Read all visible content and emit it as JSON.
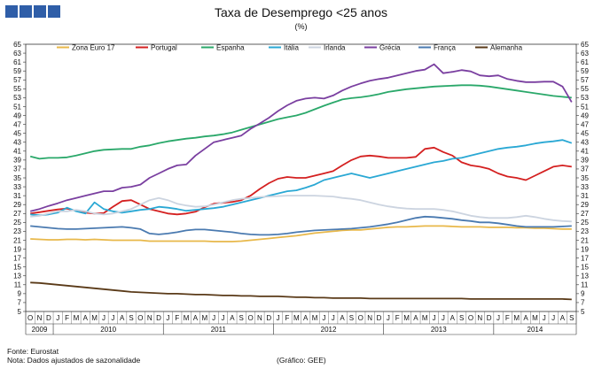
{
  "header": {
    "title": "Taxa de Desemprego <25 anos",
    "subtitle": "(%)"
  },
  "footer": {
    "source": "Fonte: Eurostat",
    "note": "Nota: Dados ajustados de sazonalidade",
    "credit": "(Gráfico: GEE)"
  },
  "chart_data": {
    "type": "line",
    "title": "Taxa de Desemprego <25 anos",
    "unit": "(%)",
    "ylim": [
      5,
      65
    ],
    "ytick_step": 2,
    "grid": false,
    "legend_position": "top",
    "start_month": "2009-10",
    "month_letters": [
      "O",
      "N",
      "D",
      "J",
      "F",
      "M",
      "A",
      "M",
      "J",
      "J",
      "A",
      "S",
      "O",
      "N",
      "D",
      "J",
      "F",
      "M",
      "A",
      "M",
      "J",
      "J",
      "A",
      "S",
      "O",
      "N",
      "D",
      "J",
      "F",
      "M",
      "A",
      "M",
      "J",
      "J",
      "A",
      "S",
      "O",
      "N",
      "D",
      "J",
      "F",
      "M",
      "A",
      "M",
      "J",
      "J",
      "A",
      "S",
      "O",
      "N",
      "D",
      "J",
      "F",
      "M",
      "A",
      "M",
      "J",
      "J",
      "A",
      "S"
    ],
    "years": [
      {
        "label": "2009",
        "start": 0,
        "count": 3
      },
      {
        "label": "2010",
        "start": 3,
        "count": 12
      },
      {
        "label": "2011",
        "start": 15,
        "count": 12
      },
      {
        "label": "2012",
        "start": 27,
        "count": 12
      },
      {
        "label": "2013",
        "start": 39,
        "count": 12
      },
      {
        "label": "2014",
        "start": 51,
        "count": 9
      }
    ],
    "series": [
      {
        "name": "Zona Euro 17",
        "color": "#e8b84a",
        "values": [
          21.3,
          21.2,
          21.1,
          21.1,
          21.2,
          21.2,
          21.1,
          21.2,
          21.1,
          21.0,
          21.0,
          21.0,
          21.0,
          20.8,
          20.8,
          20.8,
          20.8,
          20.8,
          20.8,
          20.8,
          20.7,
          20.7,
          20.7,
          20.8,
          21.0,
          21.2,
          21.4,
          21.6,
          21.8,
          22.0,
          22.3,
          22.6,
          22.8,
          23.0,
          23.2,
          23.3,
          23.3,
          23.5,
          23.7,
          23.9,
          24.0,
          24.0,
          24.1,
          24.2,
          24.2,
          24.2,
          24.1,
          24.0,
          24.0,
          24.0,
          23.9,
          23.9,
          23.9,
          23.8,
          23.8,
          23.7,
          23.7,
          23.6,
          23.5,
          23.5
        ]
      },
      {
        "name": "Portugal",
        "color": "#d42020",
        "values": [
          27.0,
          27.3,
          27.6,
          27.9,
          28.1,
          27.6,
          27.2,
          27.0,
          27.1,
          28.5,
          29.8,
          30.0,
          29.0,
          28.0,
          27.5,
          27.0,
          26.8,
          27.0,
          27.4,
          28.4,
          29.2,
          29.4,
          29.6,
          30.0,
          31.0,
          32.5,
          33.8,
          34.8,
          35.2,
          35.0,
          35.0,
          35.5,
          36.0,
          36.5,
          37.8,
          39.0,
          39.8,
          40.0,
          39.8,
          39.5,
          39.5,
          39.5,
          39.7,
          41.5,
          41.8,
          40.8,
          40.0,
          38.5,
          37.8,
          37.5,
          37.0,
          36.0,
          35.3,
          35.0,
          34.5,
          35.5,
          36.5,
          37.5,
          37.8,
          37.5
        ]
      },
      {
        "name": "Espanha",
        "color": "#2aa86a",
        "values": [
          39.8,
          39.3,
          39.5,
          39.5,
          39.6,
          40.0,
          40.5,
          41.0,
          41.3,
          41.4,
          41.5,
          41.5,
          42.0,
          42.3,
          42.8,
          43.2,
          43.5,
          43.8,
          44.0,
          44.3,
          44.5,
          44.8,
          45.2,
          45.8,
          46.4,
          47.0,
          47.6,
          48.2,
          48.6,
          49.0,
          49.6,
          50.4,
          51.2,
          51.9,
          52.6,
          52.9,
          53.1,
          53.4,
          53.8,
          54.3,
          54.6,
          54.9,
          55.1,
          55.3,
          55.5,
          55.6,
          55.7,
          55.8,
          55.8,
          55.7,
          55.5,
          55.2,
          54.9,
          54.6,
          54.3,
          54.0,
          53.7,
          53.4,
          53.2,
          53.0
        ]
      },
      {
        "name": "Itália",
        "color": "#2aa8d4",
        "values": [
          26.8,
          26.6,
          26.8,
          27.2,
          28.3,
          27.5,
          27.0,
          29.5,
          28.0,
          27.5,
          27.2,
          27.5,
          27.8,
          28.0,
          28.5,
          28.3,
          28.0,
          27.6,
          27.8,
          28.0,
          28.2,
          28.5,
          29.0,
          29.5,
          30.0,
          30.5,
          31.0,
          31.5,
          32.0,
          32.2,
          32.8,
          33.5,
          34.5,
          35.0,
          35.5,
          36.0,
          35.5,
          35.0,
          35.5,
          36.0,
          36.5,
          37.0,
          37.5,
          38.0,
          38.5,
          38.8,
          39.3,
          39.5,
          40.0,
          40.5,
          41.0,
          41.5,
          41.8,
          42.0,
          42.3,
          42.7,
          43.0,
          43.2,
          43.5,
          42.8
        ]
      },
      {
        "name": "Irlanda",
        "color": "#ccd4e0",
        "values": [
          26.3,
          26.5,
          27.0,
          27.5,
          27.5,
          27.8,
          27.5,
          27.0,
          26.8,
          27.0,
          27.5,
          28.0,
          29.0,
          30.0,
          30.5,
          30.0,
          29.2,
          28.8,
          28.5,
          28.6,
          29.0,
          29.5,
          30.0,
          30.3,
          30.5,
          30.7,
          30.8,
          30.9,
          31.0,
          31.0,
          31.0,
          31.0,
          30.9,
          30.8,
          30.5,
          30.3,
          30.0,
          29.5,
          29.0,
          28.6,
          28.3,
          28.1,
          28.0,
          28.0,
          28.0,
          27.8,
          27.5,
          27.0,
          26.5,
          26.2,
          26.0,
          26.0,
          26.0,
          26.2,
          26.5,
          26.2,
          25.8,
          25.5,
          25.3,
          25.2
        ]
      },
      {
        "name": "Grécia",
        "color": "#7a3fa0",
        "values": [
          27.5,
          28.0,
          28.7,
          29.3,
          30.0,
          30.5,
          31.0,
          31.5,
          32.0,
          32.0,
          32.8,
          33.0,
          33.5,
          35.0,
          36.0,
          37.0,
          37.8,
          38.0,
          40.0,
          41.5,
          43.0,
          43.5,
          44.0,
          44.5,
          46.0,
          47.2,
          48.5,
          50.0,
          51.3,
          52.3,
          52.8,
          53.0,
          52.8,
          53.5,
          54.6,
          55.5,
          56.2,
          56.8,
          57.2,
          57.5,
          58.0,
          58.5,
          59.0,
          59.3,
          60.5,
          58.5,
          58.8,
          59.2,
          58.9,
          58.0,
          57.8,
          58.0,
          57.2,
          56.8,
          56.5,
          56.5,
          56.6,
          56.6,
          55.5,
          52.0
        ]
      },
      {
        "name": "França",
        "color": "#4a7ab0",
        "values": [
          24.2,
          24.0,
          23.8,
          23.6,
          23.5,
          23.5,
          23.6,
          23.7,
          23.8,
          23.9,
          24.0,
          23.8,
          23.5,
          22.5,
          22.3,
          22.5,
          22.8,
          23.2,
          23.4,
          23.4,
          23.2,
          23.0,
          22.8,
          22.5,
          22.3,
          22.2,
          22.2,
          22.3,
          22.5,
          22.8,
          23.0,
          23.2,
          23.3,
          23.4,
          23.5,
          23.6,
          23.8,
          24.0,
          24.3,
          24.6,
          25.0,
          25.5,
          26.0,
          26.3,
          26.2,
          26.0,
          25.8,
          25.5,
          25.3,
          25.0,
          25.0,
          24.8,
          24.5,
          24.2,
          24.0,
          24.0,
          24.0,
          24.0,
          24.1,
          24.2
        ]
      },
      {
        "name": "Alemanha",
        "color": "#5a3a18",
        "values": [
          11.5,
          11.4,
          11.2,
          11.0,
          10.8,
          10.6,
          10.4,
          10.2,
          10.0,
          9.8,
          9.6,
          9.4,
          9.3,
          9.2,
          9.1,
          9.0,
          9.0,
          8.9,
          8.8,
          8.8,
          8.7,
          8.6,
          8.6,
          8.5,
          8.5,
          8.4,
          8.4,
          8.4,
          8.3,
          8.2,
          8.2,
          8.1,
          8.1,
          8.0,
          8.0,
          8.0,
          8.0,
          7.9,
          7.9,
          7.9,
          7.9,
          7.9,
          7.9,
          7.9,
          7.9,
          7.9,
          7.9,
          7.9,
          7.8,
          7.8,
          7.8,
          7.8,
          7.8,
          7.8,
          7.8,
          7.8,
          7.8,
          7.8,
          7.8,
          7.7
        ]
      }
    ]
  }
}
